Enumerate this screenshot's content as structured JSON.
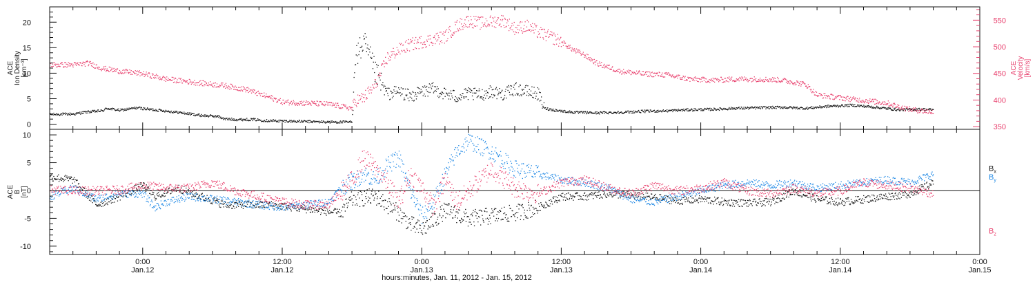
{
  "figure": {
    "xlabel": "hours:minutes, Jan. 11, 2012 - Jan. 15, 2012",
    "colors": {
      "black": "#111111",
      "pink": "#e8416e",
      "blue": "#1e88e5",
      "axis": "#111111"
    }
  },
  "chart_data": [
    {
      "type": "scatter",
      "panel": "plasma",
      "x_unit": "hours since Jan. 11, 2012 00:00",
      "xlim": [
        16.0,
        96.0
      ],
      "x_ticks": [
        {
          "x": 24,
          "time": "0:00",
          "date": "Jan.12"
        },
        {
          "x": 36,
          "time": "12:00",
          "date": "Jan.12"
        },
        {
          "x": 48,
          "time": "0:00",
          "date": "Jan.13"
        },
        {
          "x": 60,
          "time": "12:00",
          "date": "Jan.13"
        },
        {
          "x": 72,
          "time": "0:00",
          "date": "Jan.14"
        },
        {
          "x": 84,
          "time": "12:00",
          "date": "Jan.14"
        },
        {
          "x": 96,
          "time": "0:00",
          "date": "Jan.15"
        }
      ],
      "left_axis": {
        "label_lines": [
          "ACE",
          "Ion Density",
          "[cm⁻³]"
        ],
        "ylim": [
          -1,
          23
        ],
        "ticks": [
          0,
          5,
          10,
          15,
          20
        ],
        "color": "#111111"
      },
      "right_axis": {
        "label_lines": [
          "ACE",
          "Velocity",
          "[km/s]"
        ],
        "ylim": [
          345,
          575
        ],
        "ticks": [
          350,
          400,
          450,
          500,
          550
        ],
        "color": "#e8416e"
      },
      "series": [
        {
          "axis": "left",
          "color": "#111111",
          "x": [
            16.0,
            18.2,
            18.6,
            19.3,
            20.5,
            20.9,
            22.0,
            23.5,
            24.5,
            25.5,
            27.0,
            28.0,
            29.0,
            30.5,
            31.0,
            32.0,
            33.5,
            34.5,
            36.0,
            38.0,
            40.0,
            42.0,
            42.2,
            43.0,
            44.0,
            45.0,
            46.0,
            47.0,
            48.0,
            49.0,
            50.0,
            51.0,
            52.0,
            53.0,
            54.0,
            55.0,
            56.0,
            57.0,
            58.0,
            58.5,
            59.5,
            61.0,
            63.0,
            65.0,
            67.0,
            69.0,
            71.0,
            73.0,
            75.0,
            77.0,
            79.0,
            81.0,
            83.0,
            85.0,
            87.0,
            89.0,
            91.0,
            92.0
          ],
          "y": [
            2.0,
            2.1,
            2.3,
            2.5,
            2.7,
            3.2,
            2.8,
            3.3,
            3.0,
            2.8,
            2.4,
            2.1,
            1.8,
            1.6,
            1.1,
            1.0,
            1.0,
            0.8,
            0.7,
            0.6,
            0.5,
            0.5,
            13.0,
            16.0,
            10.0,
            6.0,
            6.5,
            5.5,
            6.5,
            7.0,
            6.0,
            5.5,
            6.0,
            5.8,
            6.5,
            6.0,
            7.0,
            6.5,
            6.0,
            3.2,
            2.8,
            2.4,
            2.3,
            2.4,
            2.6,
            2.7,
            2.9,
            3.0,
            3.2,
            3.3,
            3.4,
            3.2,
            3.6,
            3.8,
            3.4,
            2.9,
            3.0,
            2.9
          ]
        },
        {
          "axis": "right",
          "color": "#e8416e",
          "x": [
            16.0,
            18.2,
            19.3,
            20.5,
            22.0,
            24.0,
            26.0,
            28.0,
            30.0,
            31.0,
            33.0,
            34.0,
            35.0,
            36.0,
            38.0,
            40.0,
            42.0,
            42.3,
            43.0,
            44.0,
            45.0,
            46.0,
            47.0,
            48.0,
            49.0,
            50.0,
            51.0,
            52.0,
            53.0,
            54.0,
            55.0,
            56.0,
            57.0,
            58.0,
            59.0,
            60.0,
            61.0,
            62.0,
            63.0,
            65.0,
            67.0,
            69.0,
            71.0,
            73.0,
            75.0,
            77.0,
            79.0,
            81.0,
            82.0,
            84.0,
            86.0,
            88.0,
            89.0,
            90.0,
            92.0
          ],
          "y": [
            467,
            467,
            470,
            460,
            455,
            450,
            440,
            435,
            430,
            428,
            420,
            412,
            405,
            397,
            395,
            393,
            385,
            400,
            405,
            430,
            480,
            495,
            505,
            510,
            515,
            520,
            540,
            550,
            545,
            548,
            550,
            535,
            540,
            528,
            520,
            510,
            495,
            485,
            470,
            455,
            450,
            448,
            440,
            438,
            440,
            440,
            438,
            430,
            410,
            405,
            400,
            395,
            388,
            383,
            378
          ]
        }
      ]
    },
    {
      "type": "scatter",
      "panel": "magnetic field",
      "x_unit": "hours since Jan. 11, 2012 00:00",
      "xlim": [
        16.0,
        96.0
      ],
      "x_ticks": [
        {
          "x": 24,
          "time": "0:00",
          "date": "Jan.12"
        },
        {
          "x": 36,
          "time": "12:00",
          "date": "Jan.12"
        },
        {
          "x": 48,
          "time": "0:00",
          "date": "Jan.13"
        },
        {
          "x": 60,
          "time": "12:00",
          "date": "Jan.13"
        },
        {
          "x": 72,
          "time": "0:00",
          "date": "Jan.14"
        },
        {
          "x": 84,
          "time": "12:00",
          "date": "Jan.14"
        },
        {
          "x": 96,
          "time": "0:00",
          "date": "Jan.15"
        }
      ],
      "left_axis": {
        "label_lines": [
          "ACE",
          "B",
          "[nT]"
        ],
        "ylim": [
          -11.5,
          11
        ],
        "ticks": [
          -10,
          -5,
          0,
          5,
          10
        ],
        "color": "#111111"
      },
      "zero_line": true,
      "legend": [
        {
          "label": "B",
          "sub": "x",
          "color": "#111111"
        },
        {
          "label": "B",
          "sub": "y",
          "color": "#1e88e5"
        },
        {
          "label": "B",
          "sub": "z",
          "color": "#e8416e"
        }
      ],
      "series": [
        {
          "name": "Bx",
          "color": "#111111",
          "amp": 0.7,
          "x": [
            16,
            18,
            20,
            22,
            24,
            25,
            27,
            29,
            31,
            33,
            35,
            37,
            39,
            41,
            42,
            44,
            46,
            47,
            48,
            50,
            52,
            54,
            56,
            58,
            60,
            62,
            64,
            66,
            68,
            70,
            72,
            74,
            76,
            78,
            80,
            82,
            84,
            86,
            88,
            90,
            92
          ],
          "y": [
            2.5,
            2.0,
            -2.5,
            -1.0,
            1.0,
            -1.0,
            0.5,
            -1.0,
            -2.5,
            -2.5,
            -2.5,
            -3.0,
            -3.5,
            -4.0,
            -1.5,
            -1.0,
            -4.0,
            -6.0,
            -7.0,
            -3.5,
            -5.0,
            -4.5,
            -4.0,
            -3.0,
            -1.0,
            -1.0,
            -0.5,
            -0.8,
            -1.2,
            -1.8,
            -1.5,
            -2.0,
            -2.2,
            -2.0,
            0.0,
            -1.5,
            -2.0,
            -1.5,
            -1.0,
            -0.5,
            1.5
          ]
        },
        {
          "name": "By",
          "color": "#1e88e5",
          "amp": 0.7,
          "x": [
            16,
            18,
            20,
            22,
            24,
            25,
            26,
            28,
            30,
            32,
            34,
            36,
            38,
            40,
            41,
            43,
            44,
            45,
            46,
            47,
            48,
            49,
            50,
            51,
            52,
            54,
            56,
            58,
            60,
            62,
            64,
            66,
            68,
            70,
            72,
            74,
            76,
            78,
            80,
            82,
            84,
            86,
            88,
            90,
            92
          ],
          "y": [
            -1.0,
            0.5,
            -1.5,
            -0.5,
            -0.5,
            -3.0,
            -2.0,
            -1.0,
            -1.5,
            -2.0,
            -2.5,
            -3.0,
            -2.5,
            -2.0,
            0.5,
            3.0,
            2.0,
            4.5,
            6.0,
            0.0,
            -4.5,
            -2.0,
            3.0,
            7.0,
            9.0,
            7.0,
            4.0,
            3.0,
            2.0,
            1.5,
            0.5,
            -1.5,
            -2.0,
            -1.0,
            0.0,
            1.0,
            1.5,
            1.0,
            1.5,
            0.5,
            1.0,
            1.5,
            2.0,
            1.5,
            3.0
          ]
        },
        {
          "name": "Bz",
          "color": "#e8416e",
          "amp": 0.8,
          "x": [
            16,
            18,
            20,
            22,
            24,
            26,
            28,
            30,
            32,
            34,
            36,
            38,
            40,
            42,
            43,
            44,
            45,
            46,
            47,
            48,
            49,
            50,
            51,
            52,
            54,
            56,
            58,
            60,
            62,
            64,
            66,
            68,
            70,
            72,
            74,
            76,
            78,
            80,
            82,
            84,
            86,
            88,
            90,
            92
          ],
          "y": [
            0.2,
            0.0,
            0.0,
            0.2,
            1.0,
            0.5,
            0.5,
            1.5,
            0.0,
            -1.0,
            -2.0,
            -2.5,
            -2.5,
            2.0,
            6.0,
            4.0,
            1.5,
            -2.0,
            3.0,
            0.5,
            -3.0,
            2.0,
            -2.0,
            0.0,
            4.0,
            0.5,
            -0.5,
            1.5,
            2.0,
            0.5,
            -0.5,
            1.0,
            0.0,
            0.5,
            1.5,
            0.0,
            -0.5,
            0.5,
            -0.5,
            0.0,
            1.5,
            1.0,
            0.5,
            -0.5
          ]
        }
      ]
    }
  ]
}
